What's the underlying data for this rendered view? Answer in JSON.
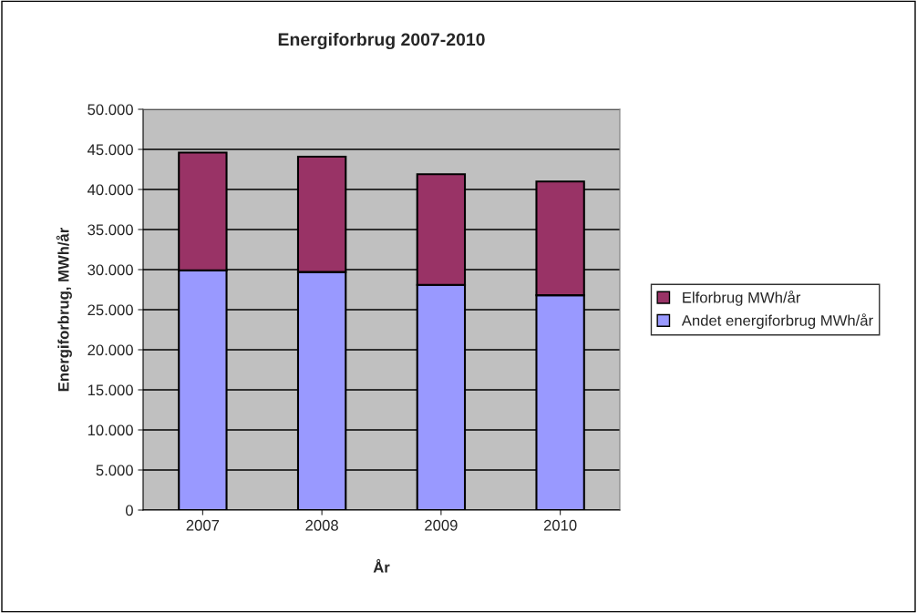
{
  "chart_data": {
    "type": "bar",
    "title": "Energiforbrug 2007-2010",
    "xlabel": "År",
    "ylabel": "Energiforbrug, MWh/år",
    "categories": [
      "2007",
      "2008",
      "2009",
      "2010"
    ],
    "stacked": true,
    "series": [
      {
        "name": "Andet energiforbrug MWh/år",
        "color": "#9999ff",
        "values": [
          29900,
          29700,
          28100,
          26800
        ]
      },
      {
        "name": "Elforbrug MWh/år",
        "color": "#993366",
        "values": [
          14700,
          14400,
          13800,
          14200
        ]
      }
    ],
    "ylim": [
      0,
      50000
    ],
    "yticks": [
      0,
      {
        "value": 5000,
        "label": "5.000"
      },
      {
        "value": 10000,
        "label": "10.000"
      },
      {
        "value": 15000,
        "label": "15.000"
      },
      {
        "value": 20000,
        "label": "20.000"
      },
      {
        "value": 25000,
        "label": "25.000"
      },
      {
        "value": 30000,
        "label": "30.000"
      },
      {
        "value": 35000,
        "label": "35.000"
      },
      {
        "value": 40000,
        "label": "40.000"
      },
      {
        "value": 45000,
        "label": "45.000"
      },
      {
        "value": 50000,
        "label": "50.000"
      }
    ],
    "grid": "y",
    "legend": "right"
  }
}
